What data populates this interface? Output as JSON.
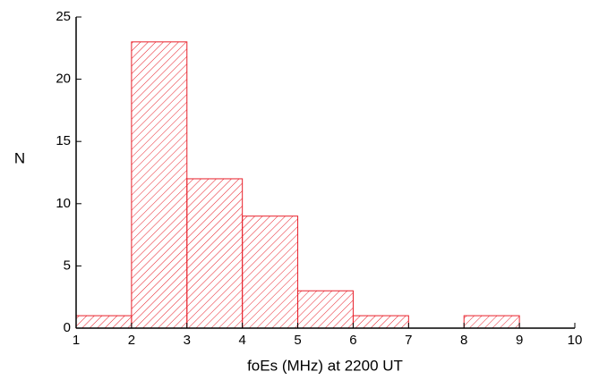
{
  "chart_data": {
    "type": "histogram",
    "x_label": "foEs (MHz) at 2200 UT",
    "y_label": "N",
    "bins": [
      1,
      2,
      3,
      4,
      5,
      6,
      7,
      8,
      9,
      10
    ],
    "values": [
      1,
      23,
      12,
      9,
      3,
      1,
      0,
      1,
      0
    ],
    "color": "#e8202a",
    "xlim": [
      1,
      10
    ],
    "xticks": [
      1,
      2,
      3,
      4,
      5,
      6,
      7,
      8,
      9,
      10
    ],
    "ylim": [
      0,
      25
    ],
    "yticks": [
      0,
      5,
      10,
      15,
      20,
      25
    ]
  }
}
